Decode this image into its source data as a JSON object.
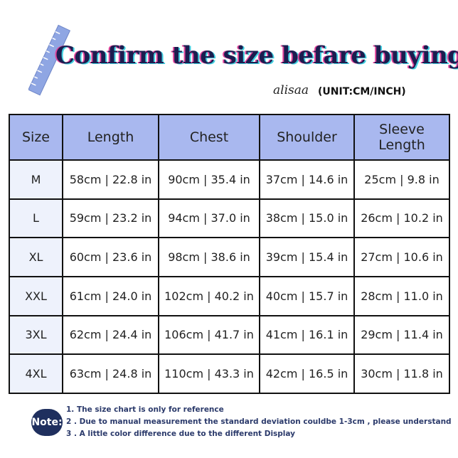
{
  "header": {
    "title": "Confirm the size befare buying",
    "brand": "alisaa",
    "unit": "(UNIT:CM/INCH)"
  },
  "table": {
    "columns": [
      "Size",
      "Length",
      "Chest",
      "Shoulder",
      "Sleeve Length"
    ],
    "rows": [
      [
        "M",
        "58cm | 22.8 in",
        "90cm | 35.4 in",
        "37cm | 14.6 in",
        "25cm | 9.8 in"
      ],
      [
        "L",
        "59cm | 23.2 in",
        "94cm | 37.0 in",
        "38cm | 15.0 in",
        "26cm | 10.2 in"
      ],
      [
        "XL",
        "60cm | 23.6 in",
        "98cm | 38.6 in",
        "39cm | 15.4 in",
        "27cm | 10.6 in"
      ],
      [
        "XXL",
        "61cm | 24.0 in",
        "102cm | 40.2 in",
        "40cm | 15.7 in",
        "28cm | 11.0 in"
      ],
      [
        "3XL",
        "62cm | 24.4 in",
        "106cm | 41.7 in",
        "41cm | 16.1 in",
        "29cm | 11.4 in"
      ],
      [
        "4XL",
        "63cm | 24.8 in",
        "110cm | 43.3 in",
        "42cm | 16.5 in",
        "30cm | 11.8 in"
      ]
    ]
  },
  "note": {
    "label": "Note:",
    "lines": [
      "1. The size chart is only for reference",
      "2 . Due to manual measurement the standard deviation couldbe 1-3cm , please understand",
      "3 . A little color difference due to the different Display"
    ]
  }
}
